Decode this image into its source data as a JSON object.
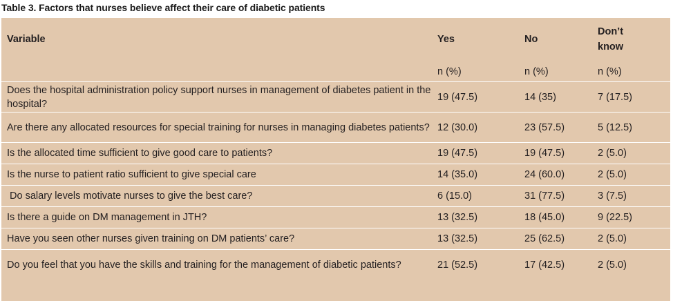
{
  "caption": "Table 3. Factors that nurses believe affect their care of diabetic patients",
  "headers": {
    "variable": "Variable",
    "yes": "Yes",
    "no": "No",
    "dont_know_line1": "Don’t",
    "dont_know_line2": "know"
  },
  "units": {
    "variable": "",
    "yes": "n (%)",
    "no": "n (%)",
    "dont_know": "n (%)"
  },
  "rows": [
    {
      "variable": "Does the hospital administration policy support nurses in management of diabetes patient in the hospital?",
      "yes": "19 (47.5)",
      "no": "14 (35)",
      "dont_know": "7 (17.5)"
    },
    {
      "variable": "Are there any allocated resources for special training for nurses in managing diabetes patients?",
      "yes": "12 (30.0)",
      "no": "23 (57.5)",
      "dont_know": "5 (12.5)"
    },
    {
      "variable": "Is the allocated time sufficient to give good care to patients?",
      "yes": "19 (47.5)",
      "no": "19 (47.5)",
      "dont_know": "2 (5.0)"
    },
    {
      "variable": "Is the nurse to patient ratio sufficient to give special care",
      "yes": "14 (35.0)",
      "no": "24 (60.0)",
      "dont_know": "2 (5.0)"
    },
    {
      "variable": " Do salary levels motivate nurses to give the best care?",
      "yes": "6 (15.0)",
      "no": "31 (77.5)",
      "dont_know": "3 (7.5)"
    },
    {
      "variable": "Is there a guide on DM management in JTH?",
      "yes": "13 (32.5)",
      "no": "18 (45.0)",
      "dont_know": "9 (22.5)"
    },
    {
      "variable": "Have you seen other nurses given training on DM patients’ care?",
      "yes": "13 (32.5)",
      "no": "25 (62.5)",
      "dont_know": "2 (5.0)"
    },
    {
      "variable": "Do you feel that you have the skills and training for the management of diabetic patients?",
      "yes": "21 (52.5)",
      "no": "17 (42.5)",
      "dont_know": "2 (5.0)"
    }
  ]
}
